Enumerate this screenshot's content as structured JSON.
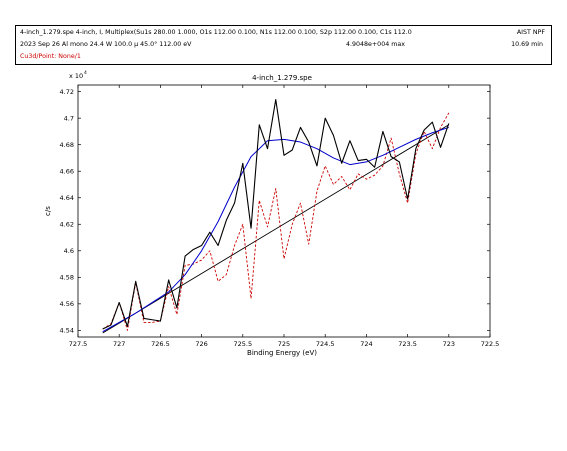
{
  "header": {
    "line1_left": "4-inch_1.279.spe  4-inch, I, Multiplex(Su1s 280.00 1.000, O1s 112.00 0.100, N1s 112.00 0.100, S2p 112.00 0.100, C1s 112.0",
    "line1_right": "AIST NPF",
    "line2_left": "2023 Sep 26  Al mono  24.4 W  100.0 μ  45.0°  112.00 eV",
    "line2_mid": "4.9048e+004 max",
    "line2_right": "10.69 min",
    "line3_left": "Cu3d/Point: None/1"
  },
  "colors": {
    "raw": "#000000",
    "envelope": "#0000cc",
    "residual": "#cc0000",
    "background": "#000000"
  },
  "chart_data": {
    "type": "line",
    "title": "4-inch_1.279.spe",
    "xlabel": "Binding Energy (eV)",
    "ylabel": "c/s",
    "y_multiplier": "x 10",
    "y_multiplier_exp": "4",
    "x_reversed": true,
    "xlim": [
      727.5,
      722.5
    ],
    "ylim": [
      4.535,
      4.725
    ],
    "x_ticks": [
      727.5,
      727,
      726.5,
      726,
      725.5,
      725,
      724.5,
      724,
      723.5,
      723,
      722.5
    ],
    "x_tick_labels": [
      "727.5",
      "727",
      "726.5",
      "726",
      "725.5",
      "725",
      "724.5",
      "724",
      "723.5",
      "723",
      "722.5"
    ],
    "y_ticks": [
      4.54,
      4.56,
      4.58,
      4.6,
      4.62,
      4.64,
      4.66,
      4.68,
      4.7,
      4.72
    ],
    "y_tick_labels": [
      "4.54",
      "4.56",
      "4.58",
      "4.6",
      "4.62",
      "4.64",
      "4.66",
      "4.68",
      "4.7",
      "4.72"
    ],
    "grid": false,
    "series": [
      {
        "key": "raw",
        "style": "solid",
        "x": [
          727.2,
          727.1,
          727.0,
          726.9,
          726.8,
          726.7,
          726.6,
          726.5,
          726.4,
          726.3,
          726.2,
          726.1,
          726.0,
          725.9,
          725.8,
          725.7,
          725.6,
          725.5,
          725.4,
          725.3,
          725.2,
          725.1,
          725.0,
          724.9,
          724.8,
          724.7,
          724.6,
          724.5,
          724.4,
          724.3,
          724.2,
          724.1,
          724.0,
          723.9,
          723.8,
          723.7,
          723.6,
          723.5,
          723.4,
          723.3,
          723.2,
          723.1,
          723.0
        ],
        "y": [
          4.541,
          4.544,
          4.561,
          4.543,
          4.577,
          4.549,
          4.548,
          4.547,
          4.578,
          4.557,
          4.596,
          4.601,
          4.604,
          4.614,
          4.604,
          4.623,
          4.636,
          4.666,
          4.617,
          4.695,
          4.677,
          4.714,
          4.672,
          4.676,
          4.693,
          4.682,
          4.664,
          4.7,
          4.687,
          4.666,
          4.683,
          4.668,
          4.669,
          4.663,
          4.69,
          4.671,
          4.667,
          4.639,
          4.677,
          4.691,
          4.697,
          4.678,
          4.696
        ]
      },
      {
        "key": "residual",
        "style": "dashed",
        "x": [
          727.2,
          727.1,
          727.0,
          726.9,
          726.8,
          726.7,
          726.6,
          726.5,
          726.4,
          726.3,
          726.2,
          726.1,
          726.0,
          725.9,
          725.8,
          725.7,
          725.6,
          725.5,
          725.4,
          725.3,
          725.2,
          725.1,
          725.0,
          724.9,
          724.8,
          724.7,
          724.6,
          724.5,
          724.4,
          724.3,
          724.2,
          724.1,
          724.0,
          723.9,
          723.8,
          723.7,
          723.6,
          723.5,
          723.4,
          723.3,
          723.2,
          723.1,
          723.0
        ],
        "y": [
          4.541,
          4.545,
          4.561,
          4.54,
          4.576,
          4.546,
          4.546,
          4.547,
          4.573,
          4.552,
          4.589,
          4.59,
          4.593,
          4.6,
          4.577,
          4.582,
          4.604,
          4.62,
          4.564,
          4.638,
          4.618,
          4.647,
          4.594,
          4.62,
          4.636,
          4.605,
          4.645,
          4.664,
          4.65,
          4.656,
          4.646,
          4.658,
          4.654,
          4.657,
          4.664,
          4.685,
          4.658,
          4.636,
          4.673,
          4.69,
          4.677,
          4.693,
          4.704
        ]
      },
      {
        "key": "envelope",
        "style": "solid",
        "x": [
          727.2,
          727.0,
          726.8,
          726.6,
          726.4,
          726.2,
          726.0,
          725.8,
          725.6,
          725.4,
          725.2,
          725.0,
          724.8,
          724.6,
          724.4,
          724.2,
          724.0,
          723.8,
          723.6,
          723.4,
          723.2,
          723.0
        ],
        "y": [
          4.539,
          4.546,
          4.553,
          4.561,
          4.569,
          4.582,
          4.6,
          4.622,
          4.648,
          4.671,
          4.683,
          4.684,
          4.682,
          4.677,
          4.67,
          4.665,
          4.667,
          4.672,
          4.678,
          4.684,
          4.689,
          4.693
        ]
      },
      {
        "key": "background",
        "style": "solid",
        "x": [
          727.2,
          723.0
        ],
        "y": [
          4.538,
          4.695
        ]
      }
    ]
  }
}
